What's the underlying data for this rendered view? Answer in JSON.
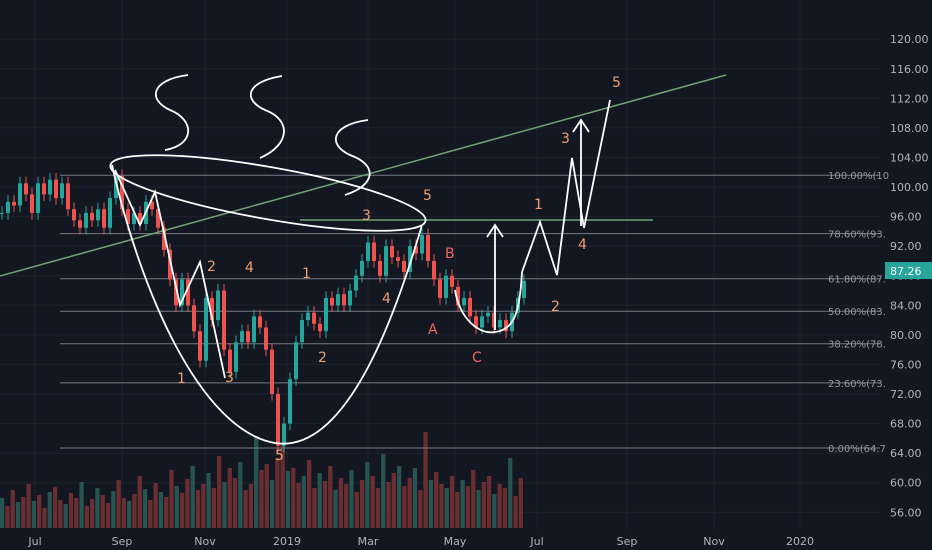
{
  "chart_data": {
    "type": "candlestick",
    "x_ticks": [
      "Jul",
      "Sep",
      "Nov",
      "2019",
      "Mar",
      "May",
      "Jul",
      "Sep",
      "Nov",
      "2020"
    ],
    "y_ticks": [
      "120.00",
      "116.00",
      "112.00",
      "108.00",
      "104.00",
      "100.00",
      "96.00",
      "92.00",
      "88.00",
      "84.00",
      "80.00",
      "76.00",
      "72.00",
      "68.00",
      "64.00",
      "60.00",
      "56.00"
    ],
    "ylim": [
      53.6,
      122.6
    ],
    "last_price": "87.26",
    "fib_levels": [
      {
        "label": "100.00%(10",
        "value": 101.6
      },
      {
        "label": "78.60%(93.",
        "value": 93.7
      },
      {
        "label": "61.80%(87.",
        "value": 87.6
      },
      {
        "label": "50.00%(83.",
        "value": 83.2
      },
      {
        "label": "38.20%(78.",
        "value": 78.8
      },
      {
        "label": "23.60%(73.",
        "value": 73.5
      },
      {
        "label": "0.00%(64.7",
        "value": 64.7
      }
    ],
    "price_path": [
      [
        0,
        96.5
      ],
      [
        6,
        98
      ],
      [
        12,
        97.5
      ],
      [
        18,
        100.5
      ],
      [
        24,
        99
      ],
      [
        30,
        96.5
      ],
      [
        36,
        100.5
      ],
      [
        42,
        99
      ],
      [
        48,
        101
      ],
      [
        54,
        98.5
      ],
      [
        60,
        100.5
      ],
      [
        66,
        97
      ],
      [
        72,
        95.5
      ],
      [
        78,
        94.5
      ],
      [
        84,
        96.5
      ],
      [
        90,
        95.5
      ],
      [
        96,
        97
      ],
      [
        102,
        94.5
      ],
      [
        108,
        98.5
      ],
      [
        114,
        101.5
      ],
      [
        120,
        97
      ],
      [
        126,
        95
      ],
      [
        132,
        96.5
      ],
      [
        138,
        95
      ],
      [
        144,
        98
      ],
      [
        150,
        97
      ],
      [
        156,
        94.5
      ],
      [
        162,
        91.5
      ],
      [
        168,
        87.5
      ],
      [
        174,
        84
      ],
      [
        180,
        87.5
      ],
      [
        186,
        84
      ],
      [
        192,
        80.5
      ],
      [
        198,
        76.5
      ],
      [
        204,
        85
      ],
      [
        210,
        82
      ],
      [
        216,
        86
      ],
      [
        222,
        78
      ],
      [
        228,
        75
      ],
      [
        234,
        79
      ],
      [
        240,
        80.5
      ],
      [
        246,
        79
      ],
      [
        252,
        82.5
      ],
      [
        258,
        81
      ],
      [
        264,
        78
      ],
      [
        270,
        72
      ],
      [
        276,
        65
      ],
      [
        282,
        68
      ],
      [
        288,
        74
      ],
      [
        294,
        79
      ],
      [
        300,
        82
      ],
      [
        306,
        83
      ],
      [
        312,
        81.5
      ],
      [
        318,
        80.5
      ],
      [
        324,
        85
      ],
      [
        330,
        84
      ],
      [
        336,
        85.5
      ],
      [
        342,
        84
      ],
      [
        348,
        86
      ],
      [
        354,
        88
      ],
      [
        360,
        90
      ],
      [
        366,
        92.5
      ],
      [
        372,
        90
      ],
      [
        378,
        88
      ],
      [
        384,
        92
      ],
      [
        390,
        90.5
      ],
      [
        396,
        90
      ],
      [
        402,
        88.5
      ],
      [
        408,
        92
      ],
      [
        414,
        91
      ],
      [
        420,
        93.5
      ],
      [
        426,
        90
      ],
      [
        432,
        87.5
      ],
      [
        438,
        85
      ],
      [
        444,
        88
      ],
      [
        450,
        86.5
      ],
      [
        456,
        84
      ],
      [
        462,
        85
      ],
      [
        468,
        82.5
      ],
      [
        474,
        81
      ],
      [
        480,
        82.5
      ],
      [
        486,
        83
      ],
      [
        492,
        81
      ],
      [
        498,
        82
      ],
      [
        504,
        80.5
      ],
      [
        510,
        83
      ],
      [
        516,
        85
      ],
      [
        522,
        87.3
      ]
    ],
    "volume_heights": [
      30,
      22,
      38,
      26,
      31,
      44,
      27,
      33,
      20,
      36,
      41,
      28,
      24,
      35,
      30,
      46,
      22,
      29,
      40,
      33,
      25,
      37,
      48,
      30,
      27,
      34,
      52,
      39,
      28,
      45,
      36,
      31,
      58,
      42,
      35,
      49,
      62,
      38,
      44,
      55,
      40,
      72,
      46,
      60,
      50,
      66,
      38,
      44,
      92,
      58,
      64,
      48,
      70,
      84,
      57,
      60,
      45,
      52,
      68,
      40,
      55,
      47,
      62,
      38,
      50,
      44,
      58,
      36,
      48,
      66,
      52,
      40,
      74,
      46,
      55,
      62,
      42,
      50,
      60,
      38,
      96,
      48,
      56,
      44,
      40,
      52,
      36,
      48,
      42,
      58,
      38,
      46,
      52,
      34,
      44,
      40,
      70,
      32,
      50
    ]
  }
}
